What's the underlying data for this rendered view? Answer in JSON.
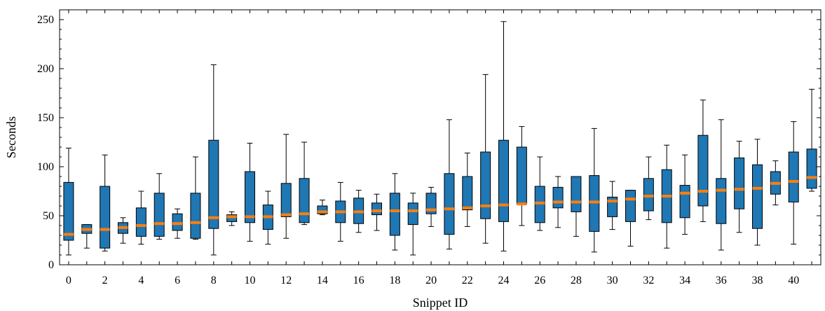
{
  "chart_data": {
    "type": "box",
    "xlabel": "Snippet ID",
    "ylabel": "Seconds",
    "xlim": [
      -0.5,
      41.5
    ],
    "ylim": [
      0,
      260
    ],
    "x_tick_labels": [
      "0",
      "2",
      "4",
      "6",
      "8",
      "10",
      "12",
      "14",
      "16",
      "18",
      "20",
      "22",
      "24",
      "26",
      "28",
      "30",
      "32",
      "34",
      "36",
      "38",
      "40"
    ],
    "y_tick_labels": [
      "0",
      "50",
      "100",
      "150",
      "200",
      "250"
    ],
    "grid": false,
    "colors": {
      "box_fill": "#1f77b4",
      "median": "#ff7f0e",
      "whisker": "#000000"
    },
    "boxes": [
      {
        "id": 0,
        "whislo": 10,
        "q1": 25,
        "med": 31,
        "q3": 84,
        "whishi": 119
      },
      {
        "id": 1,
        "whislo": 17,
        "q1": 32,
        "med": 36,
        "q3": 41,
        "whishi": 41
      },
      {
        "id": 2,
        "whislo": 14,
        "q1": 17,
        "med": 36,
        "q3": 80,
        "whishi": 112
      },
      {
        "id": 3,
        "whislo": 22,
        "q1": 32,
        "med": 38,
        "q3": 43,
        "whishi": 48
      },
      {
        "id": 4,
        "whislo": 21,
        "q1": 29,
        "med": 40,
        "q3": 58,
        "whishi": 75
      },
      {
        "id": 5,
        "whislo": 26,
        "q1": 29,
        "med": 42,
        "q3": 73,
        "whishi": 93
      },
      {
        "id": 6,
        "whislo": 27,
        "q1": 35,
        "med": 42,
        "q3": 52,
        "whishi": 57
      },
      {
        "id": 7,
        "whislo": 26,
        "q1": 27,
        "med": 43,
        "q3": 73,
        "whishi": 110
      },
      {
        "id": 8,
        "whislo": 10,
        "q1": 37,
        "med": 48,
        "q3": 127,
        "whishi": 204
      },
      {
        "id": 9,
        "whislo": 40,
        "q1": 44,
        "med": 49,
        "q3": 51,
        "whishi": 54
      },
      {
        "id": 10,
        "whislo": 24,
        "q1": 43,
        "med": 49,
        "q3": 95,
        "whishi": 124
      },
      {
        "id": 11,
        "whislo": 21,
        "q1": 36,
        "med": 49,
        "q3": 61,
        "whishi": 75
      },
      {
        "id": 12,
        "whislo": 27,
        "q1": 49,
        "med": 51,
        "q3": 83,
        "whishi": 133
      },
      {
        "id": 13,
        "whislo": 41,
        "q1": 43,
        "med": 52,
        "q3": 88,
        "whishi": 125
      },
      {
        "id": 14,
        "whislo": 51,
        "q1": 52,
        "med": 54,
        "q3": 60,
        "whishi": 66
      },
      {
        "id": 15,
        "whislo": 24,
        "q1": 43,
        "med": 54,
        "q3": 65,
        "whishi": 84
      },
      {
        "id": 16,
        "whislo": 33,
        "q1": 42,
        "med": 54,
        "q3": 68,
        "whishi": 76
      },
      {
        "id": 17,
        "whislo": 35,
        "q1": 51,
        "med": 55,
        "q3": 63,
        "whishi": 72
      },
      {
        "id": 18,
        "whislo": 15,
        "q1": 30,
        "med": 55,
        "q3": 73,
        "whishi": 93
      },
      {
        "id": 19,
        "whislo": 10,
        "q1": 41,
        "med": 55,
        "q3": 63,
        "whishi": 73
      },
      {
        "id": 20,
        "whislo": 39,
        "q1": 52,
        "med": 56,
        "q3": 73,
        "whishi": 79
      },
      {
        "id": 21,
        "whislo": 16,
        "q1": 31,
        "med": 57,
        "q3": 93,
        "whishi": 148
      },
      {
        "id": 22,
        "whislo": 39,
        "q1": 56,
        "med": 58,
        "q3": 90,
        "whishi": 114
      },
      {
        "id": 23,
        "whislo": 22,
        "q1": 47,
        "med": 60,
        "q3": 115,
        "whishi": 194
      },
      {
        "id": 24,
        "whislo": 14,
        "q1": 44,
        "med": 61,
        "q3": 127,
        "whishi": 248
      },
      {
        "id": 25,
        "whislo": 40,
        "q1": 62,
        "med": 62,
        "q3": 120,
        "whishi": 141
      },
      {
        "id": 26,
        "whislo": 35,
        "q1": 43,
        "med": 63,
        "q3": 80,
        "whishi": 110
      },
      {
        "id": 27,
        "whislo": 38,
        "q1": 58,
        "med": 64,
        "q3": 79,
        "whishi": 90
      },
      {
        "id": 28,
        "whislo": 29,
        "q1": 54,
        "med": 64,
        "q3": 90,
        "whishi": 90
      },
      {
        "id": 29,
        "whislo": 13,
        "q1": 34,
        "med": 64,
        "q3": 91,
        "whishi": 139
      },
      {
        "id": 30,
        "whislo": 36,
        "q1": 49,
        "med": 65,
        "q3": 69,
        "whishi": 85
      },
      {
        "id": 31,
        "whislo": 19,
        "q1": 44,
        "med": 67,
        "q3": 76,
        "whishi": 76
      },
      {
        "id": 32,
        "whislo": 46,
        "q1": 55,
        "med": 70,
        "q3": 88,
        "whishi": 110
      },
      {
        "id": 33,
        "whislo": 17,
        "q1": 43,
        "med": 70,
        "q3": 97,
        "whishi": 122
      },
      {
        "id": 34,
        "whislo": 31,
        "q1": 48,
        "med": 73,
        "q3": 81,
        "whishi": 112
      },
      {
        "id": 35,
        "whislo": 44,
        "q1": 60,
        "med": 75,
        "q3": 132,
        "whishi": 168
      },
      {
        "id": 36,
        "whislo": 15,
        "q1": 42,
        "med": 76,
        "q3": 88,
        "whishi": 148
      },
      {
        "id": 37,
        "whislo": 33,
        "q1": 57,
        "med": 77,
        "q3": 109,
        "whishi": 126
      },
      {
        "id": 38,
        "whislo": 20,
        "q1": 37,
        "med": 78,
        "q3": 102,
        "whishi": 128
      },
      {
        "id": 39,
        "whislo": 61,
        "q1": 72,
        "med": 83,
        "q3": 95,
        "whishi": 106
      },
      {
        "id": 40,
        "whislo": 21,
        "q1": 64,
        "med": 85,
        "q3": 115,
        "whishi": 146
      },
      {
        "id": 41,
        "whislo": 75,
        "q1": 78,
        "med": 89,
        "q3": 118,
        "whishi": 179
      }
    ]
  }
}
